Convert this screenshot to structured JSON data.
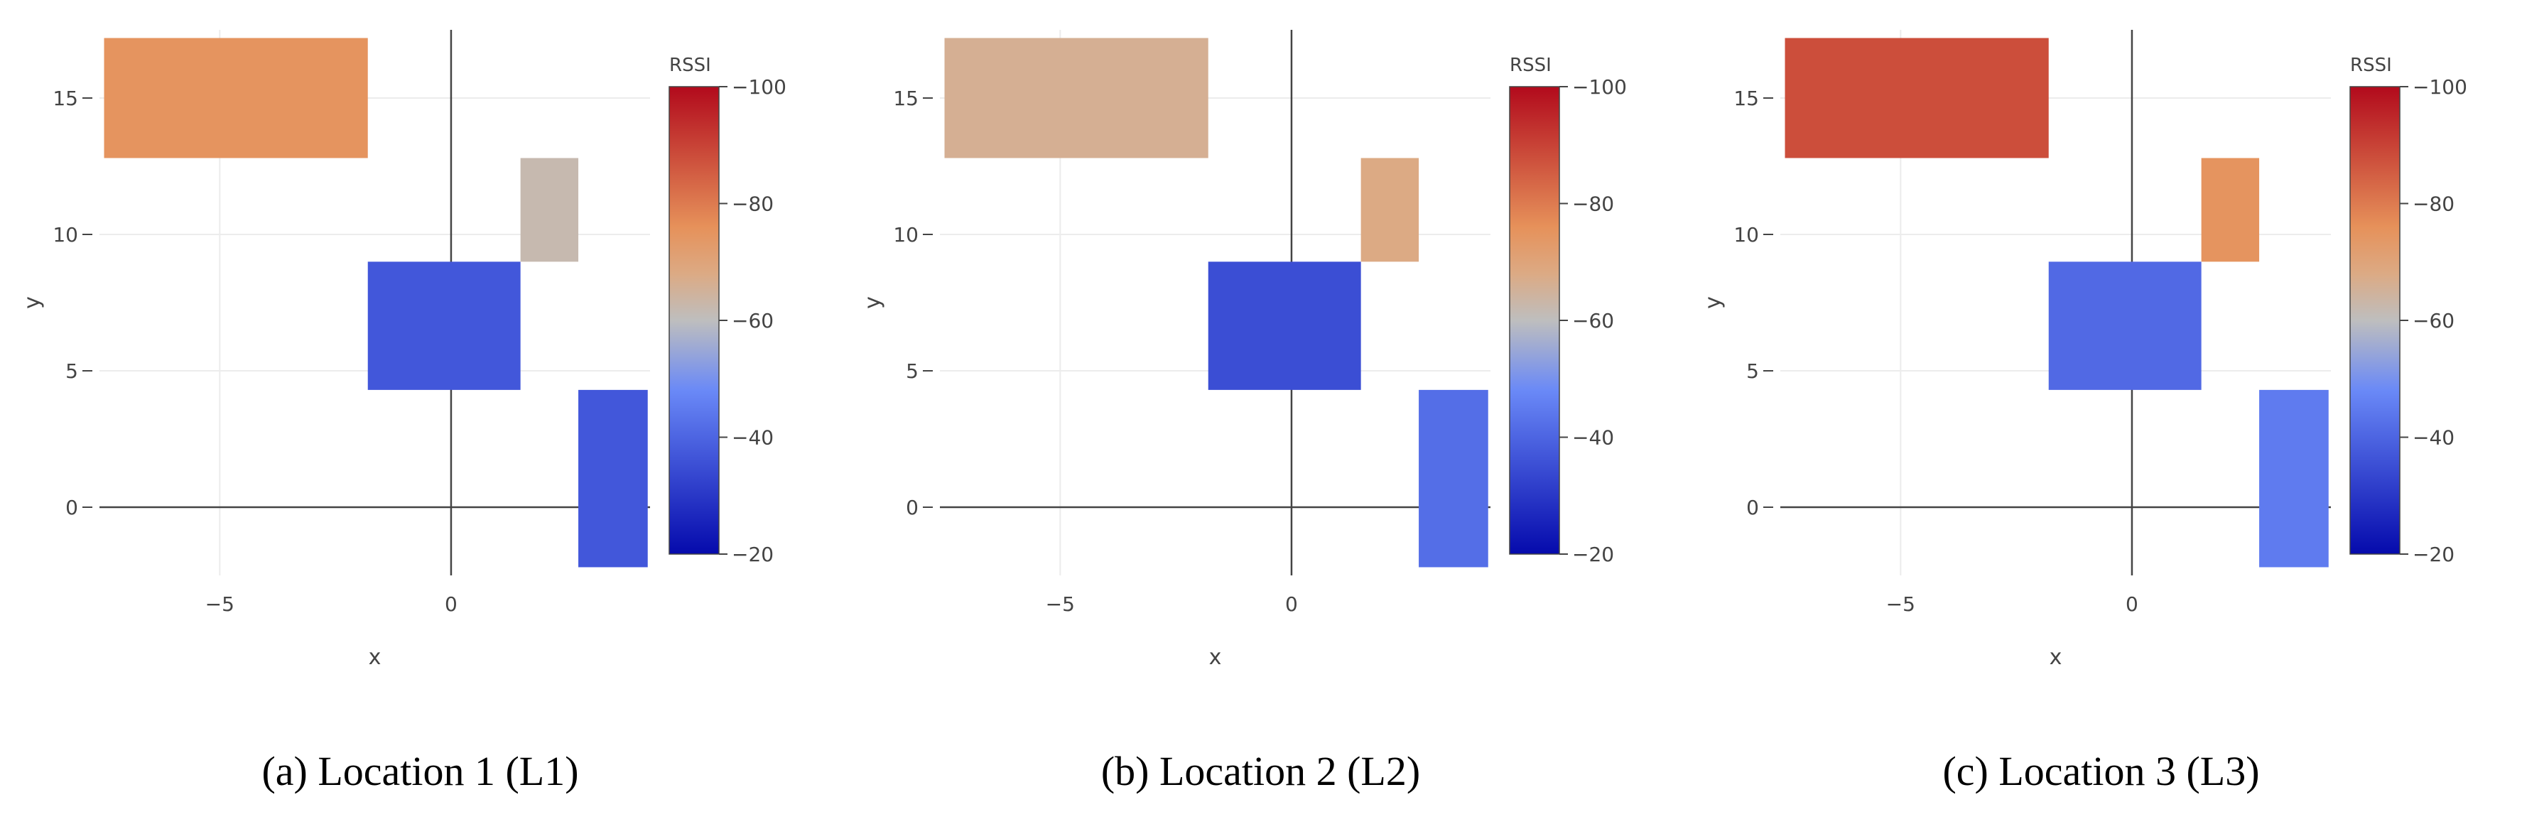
{
  "chart_data": [
    {
      "type": "heatmap",
      "caption": "(a) Location 1 (L1)",
      "xlabel": "x",
      "ylabel": "y",
      "xlim": [
        -7.6,
        4.3
      ],
      "ylim": [
        -2.5,
        17.5
      ],
      "x_ticks": [
        -5,
        0
      ],
      "y_ticks": [
        0,
        5,
        10,
        15
      ],
      "colorbar": {
        "title": "RSSI",
        "min": -100,
        "max": -20,
        "ticks": [
          -100,
          -80,
          -60,
          -40,
          -20
        ]
      },
      "regions": [
        {
          "x0": -7.5,
          "x1": -1.8,
          "y0": 12.8,
          "y1": 17.2,
          "rssi": -75
        },
        {
          "x0": 1.5,
          "x1": 2.75,
          "y0": 9.0,
          "y1": 12.8,
          "rssi": -62
        },
        {
          "x0": -1.8,
          "x1": 1.5,
          "y0": 4.3,
          "y1": 9.0,
          "rssi": -37
        },
        {
          "x0": 2.75,
          "x1": 4.25,
          "y0": -2.2,
          "y1": 4.3,
          "rssi": -37
        }
      ]
    },
    {
      "type": "heatmap",
      "caption": "(b) Location 2 (L2)",
      "xlabel": "x",
      "ylabel": "y",
      "xlim": [
        -7.6,
        4.3
      ],
      "ylim": [
        -2.5,
        17.5
      ],
      "x_ticks": [
        -5,
        0
      ],
      "y_ticks": [
        0,
        5,
        10,
        15
      ],
      "colorbar": {
        "title": "RSSI",
        "min": -100,
        "max": -20,
        "ticks": [
          -100,
          -80,
          -60,
          -40,
          -20
        ]
      },
      "regions": [
        {
          "x0": -7.5,
          "x1": -1.8,
          "y0": 12.8,
          "y1": 17.2,
          "rssi": -66
        },
        {
          "x0": 1.5,
          "x1": 2.75,
          "y0": 9.0,
          "y1": 12.8,
          "rssi": -68
        },
        {
          "x0": -1.8,
          "x1": 1.5,
          "y0": 4.3,
          "y1": 9.0,
          "rssi": -35
        },
        {
          "x0": 2.75,
          "x1": 4.25,
          "y0": -2.2,
          "y1": 4.3,
          "rssi": -42
        }
      ]
    },
    {
      "type": "heatmap",
      "caption": "(c) Location 3 (L3)",
      "xlabel": "x",
      "ylabel": "y",
      "xlim": [
        -7.6,
        4.3
      ],
      "ylim": [
        -2.5,
        17.5
      ],
      "x_ticks": [
        -5,
        0
      ],
      "y_ticks": [
        0,
        5,
        10,
        15
      ],
      "colorbar": {
        "title": "RSSI",
        "min": -100,
        "max": -20,
        "ticks": [
          -100,
          -80,
          -60,
          -40,
          -20
        ]
      },
      "regions": [
        {
          "x0": -7.5,
          "x1": -1.8,
          "y0": 12.8,
          "y1": 17.2,
          "rssi": -88
        },
        {
          "x0": 1.5,
          "x1": 2.75,
          "y0": 9.0,
          "y1": 12.8,
          "rssi": -75
        },
        {
          "x0": -1.8,
          "x1": 1.5,
          "y0": 4.3,
          "y1": 9.0,
          "rssi": -41
        },
        {
          "x0": 2.75,
          "x1": 4.25,
          "y0": -2.2,
          "y1": 4.3,
          "rssi": -45
        }
      ]
    }
  ]
}
